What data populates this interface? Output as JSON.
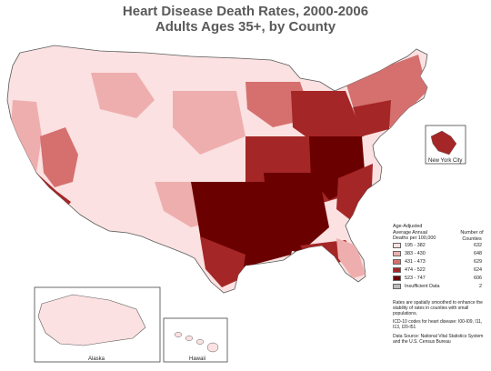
{
  "title": {
    "line1": "Heart Disease Death Rates, 2000-2006",
    "line2": "Adults Ages 35+, by County"
  },
  "colors": {
    "c1": "#fbe1e1",
    "c2": "#efaeae",
    "c3": "#d5706f",
    "c4": "#a52626",
    "c5": "#6b0000",
    "nodata": "#bdbdbd",
    "border": "#5a5a5a"
  },
  "legend": {
    "title_lines": [
      "Age-Adjusted",
      "Average Annual",
      "Deaths per 100,000"
    ],
    "count_header_lines": [
      "Number of",
      "Counties"
    ],
    "rows": [
      {
        "range": "195 - 382",
        "count": "632",
        "color": "#fbe1e1"
      },
      {
        "range": "383 - 430",
        "count": "648",
        "color": "#efaeae"
      },
      {
        "range": "431 - 473",
        "count": "629",
        "color": "#d5706f"
      },
      {
        "range": "474 - 522",
        "count": "624",
        "color": "#a52626"
      },
      {
        "range": "523 - 747",
        "count": "606",
        "color": "#6b0000"
      },
      {
        "range": "Insufficient Data",
        "count": "2",
        "color": "#bdbdbd"
      }
    ]
  },
  "notes": {
    "smoothing": "Rates are spatially smoothed to enhance the stability of rates in counties with small populations.",
    "icd": "ICD-10 codes for heart disease: I00-I09, I11, I13, I20-I51",
    "source": "Data Source: National Vital Statistics System and the U.S. Census Bureau"
  },
  "insets": {
    "alaska": "Alaska",
    "hawaii": "Hawaii",
    "nyc": "New York City"
  }
}
